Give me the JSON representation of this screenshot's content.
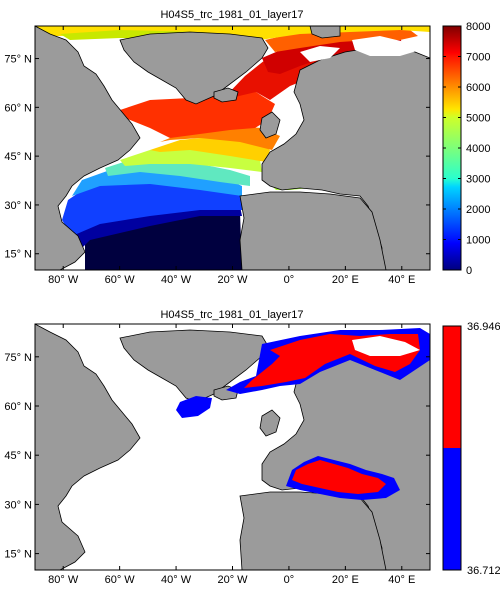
{
  "chart_data": [
    {
      "type": "heatmap",
      "title": "H04S5_trc_1981_01_layer17",
      "map_region": "North Atlantic and Mediterranean",
      "xlim": [
        -90,
        50
      ],
      "ylim": [
        10,
        85
      ],
      "x_ticks": [
        {
          "value": -80,
          "label": "80° W"
        },
        {
          "value": -60,
          "label": "60° W"
        },
        {
          "value": -40,
          "label": "40° W"
        },
        {
          "value": -20,
          "label": "20° W"
        },
        {
          "value": 0,
          "label": "0°"
        },
        {
          "value": 20,
          "label": "20° E"
        },
        {
          "value": 40,
          "label": "40° E"
        }
      ],
      "y_ticks": [
        {
          "value": 15,
          "label": "15° N"
        },
        {
          "value": 30,
          "label": "30° N"
        },
        {
          "value": 45,
          "label": "45° N"
        },
        {
          "value": 60,
          "label": "60° N"
        },
        {
          "value": 75,
          "label": "75° N"
        }
      ],
      "colorbar": {
        "min": 0,
        "max": 8000,
        "ticks": [
          0,
          1000,
          2000,
          3000,
          4000,
          5000,
          6000,
          7000,
          8000
        ],
        "colormap": "jet"
      },
      "land_color": "#9b9b9b",
      "nodata_color": "#ffffff"
    },
    {
      "type": "heatmap",
      "title": "H04S5_trc_1981_01_layer17",
      "map_region": "North Atlantic and Mediterranean",
      "xlim": [
        -90,
        50
      ],
      "ylim": [
        10,
        85
      ],
      "x_ticks": [
        {
          "value": -80,
          "label": "80° W"
        },
        {
          "value": -60,
          "label": "60° W"
        },
        {
          "value": -40,
          "label": "40° W"
        },
        {
          "value": -20,
          "label": "20° W"
        },
        {
          "value": 0,
          "label": "0°"
        },
        {
          "value": 20,
          "label": "20° E"
        },
        {
          "value": 40,
          "label": "40° E"
        }
      ],
      "y_ticks": [
        {
          "value": 15,
          "label": "15° N"
        },
        {
          "value": 30,
          "label": "30° N"
        },
        {
          "value": 45,
          "label": "45° N"
        },
        {
          "value": 60,
          "label": "60° N"
        },
        {
          "value": 75,
          "label": "75° N"
        }
      ],
      "colorbar": {
        "min": 36.712,
        "max": 36.946,
        "tick_labels": [
          "36.946",
          "36.712"
        ],
        "colors": [
          "#ff0000",
          "#0000ff"
        ]
      },
      "land_color": "#9b9b9b",
      "nodata_color": "#ffffff"
    }
  ]
}
